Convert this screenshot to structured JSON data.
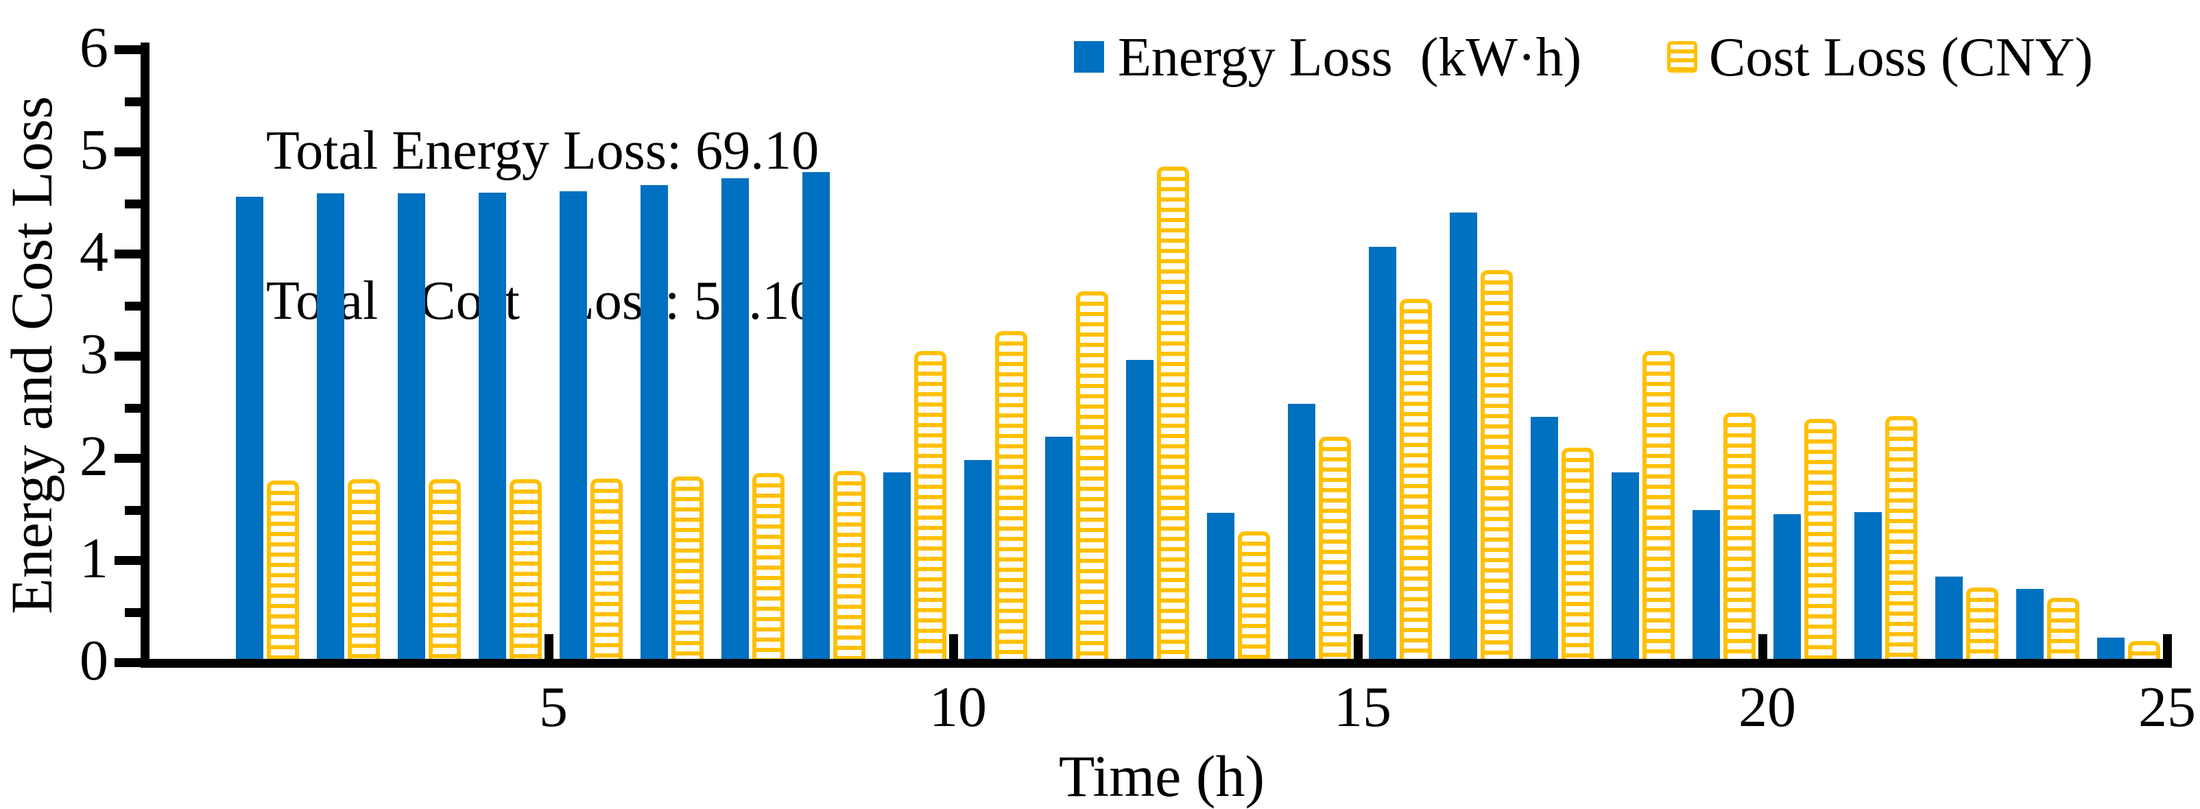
{
  "figure": {
    "annotation_line1": "Total Energy Loss: 69.10",
    "annotation_line2": "Total   Cost   Loss: 54.10"
  },
  "legend": {
    "energy_label": "Energy Loss  (kW·h)",
    "cost_label": "Cost Loss (CNY)"
  },
  "axes": {
    "x_title": "Time (h)",
    "y_title": "Energy and Cost Loss",
    "x_tick_labels": [
      5,
      10,
      15,
      20,
      25
    ],
    "y_tick_labels": [
      0,
      1,
      2,
      3,
      4,
      5,
      6
    ],
    "y_minor_ticks": [
      0.5,
      1.5,
      2.5,
      3.5,
      4.5,
      5.5
    ],
    "xlim": [
      0,
      25.3
    ],
    "ylim": [
      0,
      6
    ]
  },
  "colors": {
    "energy": "#0070c0",
    "cost": "#ffc000",
    "axis": "#000000",
    "text": "#000000"
  },
  "chart_data": {
    "type": "bar",
    "title": "",
    "xlabel": "Time (h)",
    "ylabel": "Energy and Cost Loss",
    "legend_position": "top",
    "grid": false,
    "total_energy_loss": 69.1,
    "total_cost_loss": 54.1,
    "categories": [
      1,
      2,
      3,
      4,
      5,
      6,
      7,
      8,
      9,
      10,
      11,
      12,
      13,
      14,
      15,
      16,
      17,
      18,
      19,
      20,
      21,
      22,
      23,
      24
    ],
    "series": [
      {
        "name": "Energy Loss  (kW·h)",
        "style": "solid",
        "color_key": "energy",
        "values": [
          4.56,
          4.59,
          4.59,
          4.6,
          4.61,
          4.67,
          4.74,
          4.8,
          1.86,
          1.98,
          2.21,
          2.96,
          1.46,
          2.53,
          4.07,
          4.4,
          2.4,
          1.86,
          1.49,
          1.45,
          1.47,
          0.84,
          0.72,
          0.24
        ]
      },
      {
        "name": "Cost Loss (CNY)",
        "style": "horizontal-stripes",
        "color_key": "cost",
        "values": [
          1.78,
          1.79,
          1.79,
          1.79,
          1.8,
          1.82,
          1.85,
          1.87,
          3.05,
          3.24,
          3.63,
          4.85,
          1.28,
          2.21,
          3.56,
          3.84,
          2.1,
          3.05,
          2.44,
          2.38,
          2.41,
          0.73,
          0.63,
          0.21
        ]
      }
    ]
  }
}
